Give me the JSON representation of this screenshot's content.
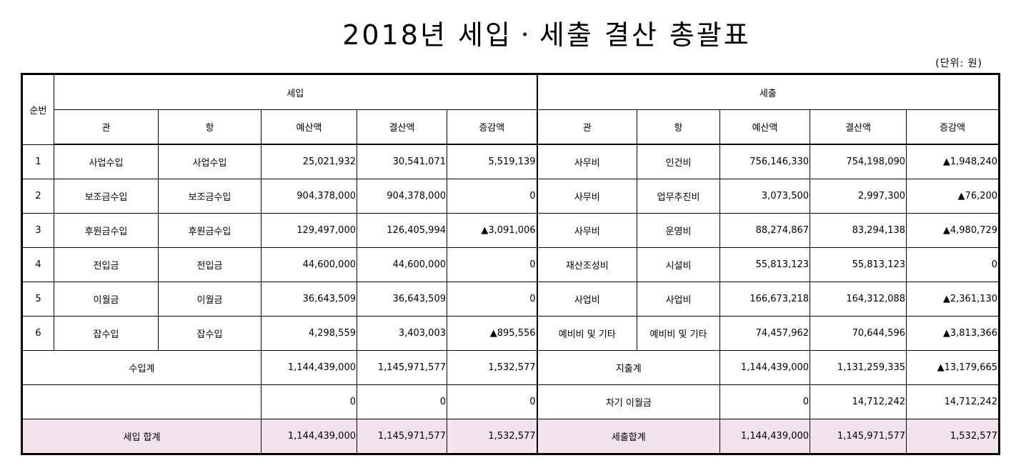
{
  "title": "2018년 세입ㆍ세출 결산 총괄표",
  "unit": "(단위: 원)",
  "headers": {
    "no": "순번",
    "revenue": "세입",
    "expense": "세출",
    "gwan": "관",
    "hang": "항",
    "budget": "예산액",
    "settled": "결산액",
    "diff": "증감액"
  },
  "rows": [
    {
      "no": "1",
      "r_gwan": "사업수입",
      "r_hang": "사업수입",
      "r_budget": "25,021,932",
      "r_settled": "30,541,071",
      "r_diff": "5,519,139",
      "e_gwan": "사무비",
      "e_hang": "인건비",
      "e_budget": "756,146,330",
      "e_settled": "754,198,090",
      "e_diff": "▲1,948,240"
    },
    {
      "no": "2",
      "r_gwan": "보조금수입",
      "r_hang": "보조금수입",
      "r_budget": "904,378,000",
      "r_settled": "904,378,000",
      "r_diff": "0",
      "e_gwan": "사무비",
      "e_hang": "업무추진비",
      "e_budget": "3,073,500",
      "e_settled": "2,997,300",
      "e_diff": "▲76,200"
    },
    {
      "no": "3",
      "r_gwan": "후원금수입",
      "r_hang": "후원금수입",
      "r_budget": "129,497,000",
      "r_settled": "126,405,994",
      "r_diff": "▲3,091,006",
      "e_gwan": "사무비",
      "e_hang": "운영비",
      "e_budget": "88,274,867",
      "e_settled": "83,294,138",
      "e_diff": "▲4,980,729"
    },
    {
      "no": "4",
      "r_gwan": "전입금",
      "r_hang": "전입금",
      "r_budget": "44,600,000",
      "r_settled": "44,600,000",
      "r_diff": "0",
      "e_gwan": "재산조성비",
      "e_hang": "시설비",
      "e_budget": "55,813,123",
      "e_settled": "55,813,123",
      "e_diff": "0"
    },
    {
      "no": "5",
      "r_gwan": "이월금",
      "r_hang": "이월금",
      "r_budget": "36,643,509",
      "r_settled": "36,643,509",
      "r_diff": "0",
      "e_gwan": "사업비",
      "e_hang": "사업비",
      "e_budget": "166,673,218",
      "e_settled": "164,312,088",
      "e_diff": "▲2,361,130"
    },
    {
      "no": "6",
      "r_gwan": "잡수입",
      "r_hang": "잡수입",
      "r_budget": "4,298,559",
      "r_settled": "3,403,003",
      "r_diff": "▲895,556",
      "e_gwan": "예비비 및 기타",
      "e_hang": "예비비 및 기타",
      "e_budget": "74,457,962",
      "e_settled": "70,644,596",
      "e_diff": "▲3,813,366"
    }
  ],
  "subtotal": {
    "r_label": "수입계",
    "r_budget": "1,144,439,000",
    "r_settled": "1,145,971,577",
    "r_diff": "1,532,577",
    "e_label": "지출계",
    "e_budget": "1,144,439,000",
    "e_settled": "1,131,259,335",
    "e_diff": "▲13,179,665"
  },
  "carryover": {
    "r_label": "",
    "r_budget": "0",
    "r_settled": "0",
    "r_diff": "0",
    "e_label": "차기 이월금",
    "e_budget": "0",
    "e_settled": "14,712,242",
    "e_diff": "14,712,242"
  },
  "total": {
    "r_label": "세입 합계",
    "r_budget": "1,144,439,000",
    "r_settled": "1,145,971,577",
    "r_diff": "1,532,577",
    "e_label": "세출합계",
    "e_budget": "1,144,439,000",
    "e_settled": "1,145,971,577",
    "e_diff": "1,532,577"
  },
  "colors": {
    "total_row_bg": "#f3e3ee"
  }
}
